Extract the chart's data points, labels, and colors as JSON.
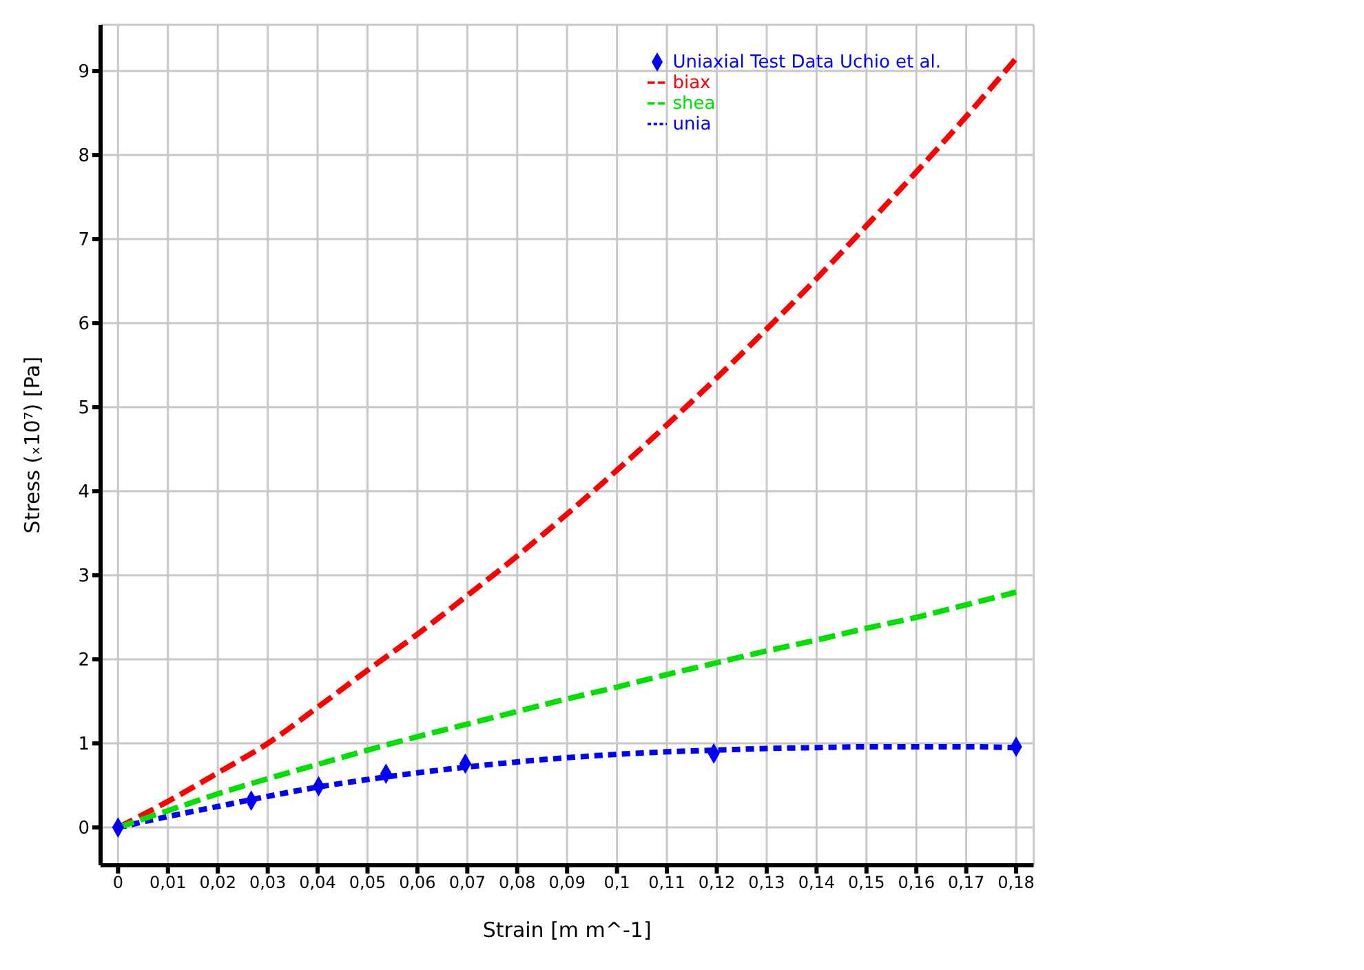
{
  "chart_data": {
    "type": "line",
    "xlabel": "Strain  [m m^-1]",
    "ylabel": "Stress  (ₓ10⁷)  [Pa]",
    "x": [
      0,
      0.01,
      0.02,
      0.03,
      0.04,
      0.05,
      0.06,
      0.07,
      0.08,
      0.09,
      0.1,
      0.11,
      0.12,
      0.13,
      0.14,
      0.15,
      0.16,
      0.17,
      0.18
    ],
    "series": [
      {
        "name": "unia",
        "color": "#0000ff",
        "line_style": "dotted",
        "values": [
          0,
          0.13,
          0.25,
          0.37,
          0.48,
          0.57,
          0.65,
          0.72,
          0.78,
          0.83,
          0.87,
          0.9,
          0.92,
          0.94,
          0.95,
          0.96,
          0.96,
          0.96,
          0.95
        ]
      },
      {
        "name": "biax",
        "color": "#ff0000",
        "line_style": "dashed",
        "values": [
          0,
          0.31,
          0.65,
          1.0,
          1.43,
          1.87,
          2.3,
          2.76,
          3.23,
          3.73,
          4.25,
          4.79,
          5.35,
          5.93,
          6.53,
          7.16,
          7.8,
          8.46,
          9.15
        ]
      },
      {
        "name": "shea",
        "color": "#00e000",
        "line_style": "dashed",
        "values": [
          0,
          0.2,
          0.4,
          0.58,
          0.75,
          0.92,
          1.08,
          1.23,
          1.38,
          1.53,
          1.67,
          1.82,
          1.96,
          2.1,
          2.23,
          2.37,
          2.5,
          2.65,
          2.8
        ]
      },
      {
        "name": "Uniaxial Test Data Uchio et al.",
        "type": "scatter",
        "marker": "diamond",
        "color": "#0000ff",
        "x": [
          0,
          0.0267,
          0.0402,
          0.0537,
          0.0696,
          0.1194,
          0.18
        ],
        "values": [
          0,
          0.32,
          0.49,
          0.64,
          0.76,
          0.88,
          0.96
        ]
      }
    ],
    "xlim": [
      -0.0035,
      0.1835
    ],
    "ylim": [
      -0.45,
      9.55
    ],
    "xticks": [
      0,
      {
        "value": 0.01,
        "label": "0,01"
      },
      {
        "value": 0.02,
        "label": "0,02"
      },
      {
        "value": 0.03,
        "label": "0,03"
      },
      {
        "value": 0.04,
        "label": "0,04"
      },
      {
        "value": 0.05,
        "label": "0,05"
      },
      {
        "value": 0.06,
        "label": "0,06"
      },
      {
        "value": 0.07,
        "label": "0,07"
      },
      {
        "value": 0.08,
        "label": "0,08"
      },
      {
        "value": 0.09,
        "label": "0,09"
      },
      {
        "value": 0.1,
        "label": "0,1"
      },
      {
        "value": 0.11,
        "label": "0,11"
      },
      {
        "value": 0.12,
        "label": "0,12"
      },
      {
        "value": 0.13,
        "label": "0,13"
      },
      {
        "value": 0.14,
        "label": "0,14"
      },
      {
        "value": 0.15,
        "label": "0,15"
      },
      {
        "value": 0.16,
        "label": "0,16"
      },
      {
        "value": 0.17,
        "label": "0,17"
      },
      {
        "value": 0.18,
        "label": "0,18"
      }
    ],
    "yticks": [
      0,
      1,
      2,
      3,
      4,
      5,
      6,
      7,
      8,
      9
    ],
    "grid": true,
    "legend": "top right",
    "marker": "none"
  }
}
